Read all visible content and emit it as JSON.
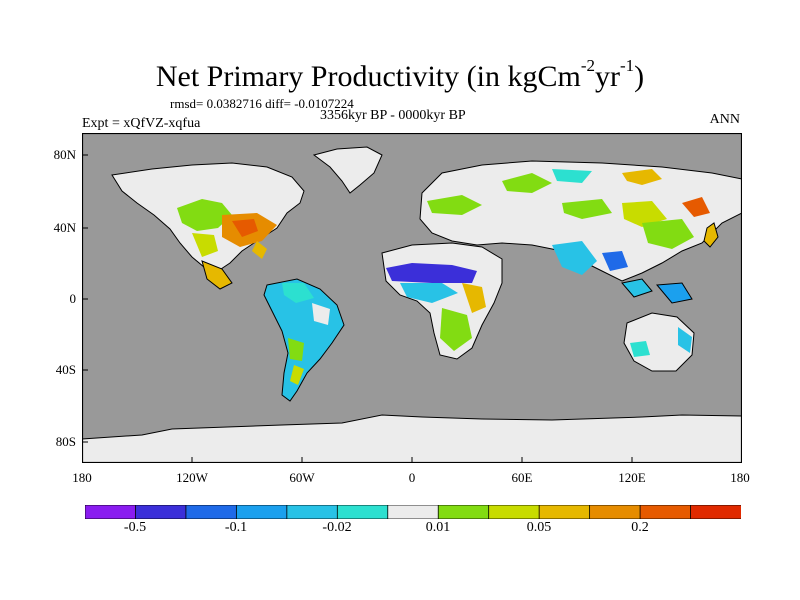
{
  "title": {
    "main": "Net Primary Productivity (in kgCm",
    "sup1": "-2",
    "mid": "yr",
    "sup2": "-1",
    "end": ")"
  },
  "stats_line": "rmsd= 0.0382716 diff= -0.0107224",
  "period": "3356kyr BP - 0000kyr BP",
  "experiment": "Expt = xQfVZ-xqfua",
  "season": "ANN",
  "axes": {
    "y_ticks": [
      "80N",
      "40N",
      "0",
      "40S",
      "80S"
    ],
    "x_ticks": [
      "180",
      "120W",
      "60W",
      "0",
      "60E",
      "120E",
      "180"
    ]
  },
  "colorbar": {
    "colors": [
      "#8a1cf0",
      "#3b2fd9",
      "#1f6ae8",
      "#1ba0ee",
      "#28c2e6",
      "#2ce0d0",
      "#ececec",
      "#82dc12",
      "#c8dc00",
      "#e6b800",
      "#e68c00",
      "#e65a00",
      "#e02a00"
    ],
    "labels": [
      "-0.5",
      "-0.1",
      "-0.02",
      "0.01",
      "0.05",
      "0.2"
    ],
    "label_bounds": [
      1,
      3,
      5,
      7,
      9,
      11
    ]
  },
  "palette": {
    "ocean": "#999999",
    "ice": "#ececec",
    "coast": "#000000"
  }
}
